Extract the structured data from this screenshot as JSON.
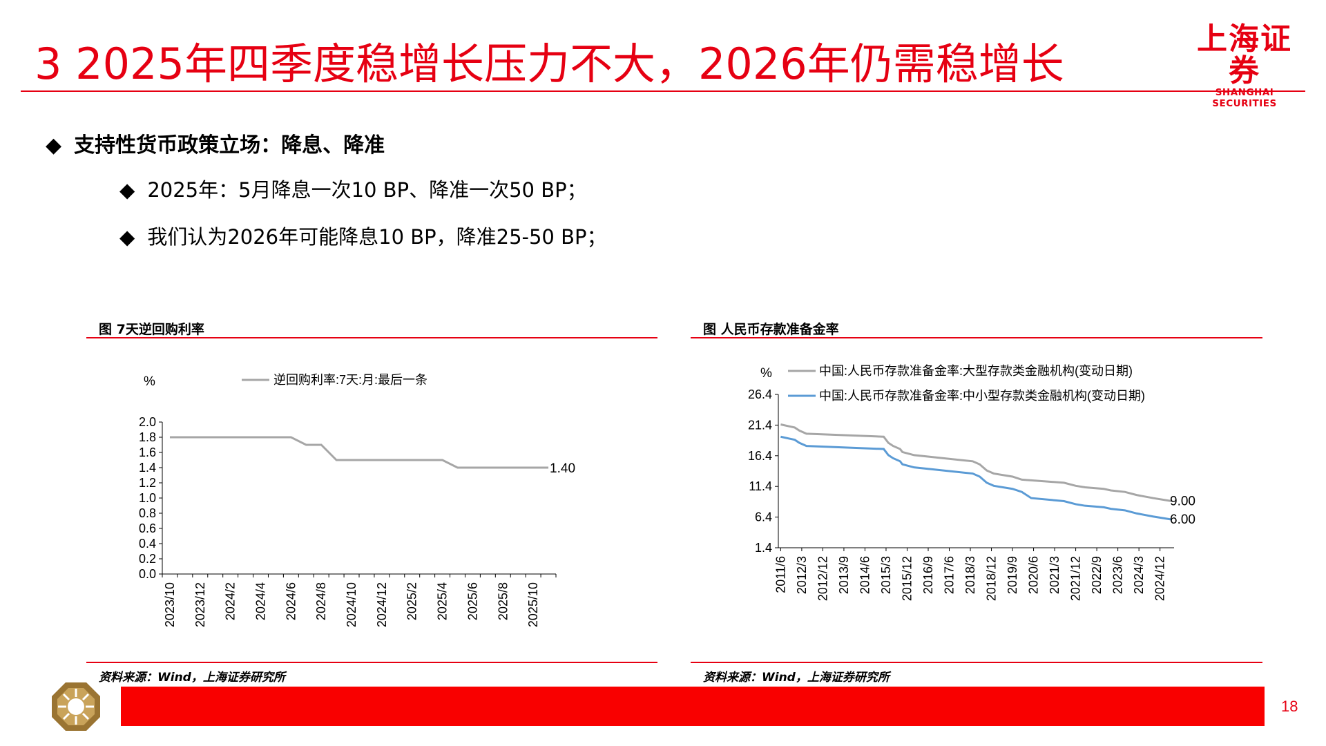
{
  "header": {
    "title": "3 2025年四季度稳增长压力不大，2026年仍需稳增长",
    "logo_cn": "上海证券",
    "logo_en": "SHANGHAI SECURITIES"
  },
  "bullets": {
    "main": "支持性货币政策立场：降息、降准",
    "sub": [
      "2025年：5月降息一次10 BP、降准一次50 BP；",
      "我们认为2026年可能降息10 BP，降准25-50 BP；"
    ],
    "symbol": "◆"
  },
  "chart_left": {
    "heading": "图 7天逆回购利率",
    "source": "资料来源：Wind，上海证券研究所"
  },
  "chart_right": {
    "heading": "图 人民币存款准备金率",
    "source": "资料来源：Wind，上海证券研究所"
  },
  "footer": {
    "page": "18"
  },
  "colors": {
    "brand_red": "#e60012",
    "gray_series": "#a6a6a6",
    "blue_series": "#5b9bd5"
  },
  "chart_data": [
    {
      "type": "line",
      "unit_label": "%",
      "ylim": [
        0.0,
        2.0
      ],
      "yticks": [
        "0.0",
        "0.2",
        "0.4",
        "0.6",
        "0.8",
        "1.0",
        "1.2",
        "1.4",
        "1.6",
        "1.8",
        "2.0"
      ],
      "xticks": [
        "2023/10",
        "2023/12",
        "2024/2",
        "2024/4",
        "2024/6",
        "2024/8",
        "2024/10",
        "2024/12",
        "2025/2",
        "2025/4",
        "2025/6",
        "2025/8",
        "2025/10"
      ],
      "x": [
        "2023/10",
        "2023/11",
        "2023/12",
        "2024/1",
        "2024/2",
        "2024/3",
        "2024/4",
        "2024/5",
        "2024/6",
        "2024/7",
        "2024/8",
        "2024/9",
        "2024/10",
        "2024/11",
        "2024/12",
        "2025/1",
        "2025/2",
        "2025/3",
        "2025/4",
        "2025/5",
        "2025/6",
        "2025/7",
        "2025/8",
        "2025/9",
        "2025/10",
        "2025/11"
      ],
      "series": [
        {
          "name": "逆回购利率:7天:月:最后一条",
          "values": [
            1.8,
            1.8,
            1.8,
            1.8,
            1.8,
            1.8,
            1.8,
            1.8,
            1.8,
            1.7,
            1.7,
            1.5,
            1.5,
            1.5,
            1.5,
            1.5,
            1.5,
            1.5,
            1.5,
            1.4,
            1.4,
            1.4,
            1.4,
            1.4,
            1.4,
            1.4
          ],
          "end_label": "1.40"
        }
      ],
      "grid": false,
      "legend_position": "top"
    },
    {
      "type": "line",
      "unit_label": "%",
      "ylim": [
        1.4,
        26.4
      ],
      "yticks": [
        "1.4",
        "6.4",
        "11.4",
        "16.4",
        "21.4",
        "26.4"
      ],
      "xticks": [
        "2011/6",
        "2012/3",
        "2012/12",
        "2013/9",
        "2014/6",
        "2015/3",
        "2015/12",
        "2016/9",
        "2017/6",
        "2018/3",
        "2018/12",
        "2019/9",
        "2020/6",
        "2021/3",
        "2021/12",
        "2022/9",
        "2023/6",
        "2024/3",
        "2024/12"
      ],
      "series": [
        {
          "name": "中国:人民币存款准备金率:大型存款类金融机构(变动日期)",
          "points": [
            [
              "2011/6",
              21.5
            ],
            [
              "2011/12",
              21.0
            ],
            [
              "2012/2",
              20.5
            ],
            [
              "2012/5",
              20.0
            ],
            [
              "2015/2",
              19.5
            ],
            [
              "2015/4",
              18.5
            ],
            [
              "2015/6",
              18.0
            ],
            [
              "2015/9",
              17.5
            ],
            [
              "2015/10",
              17.0
            ],
            [
              "2016/3",
              16.5
            ],
            [
              "2018/4",
              15.5
            ],
            [
              "2018/7",
              15.0
            ],
            [
              "2018/10",
              14.0
            ],
            [
              "2019/1",
              13.5
            ],
            [
              "2019/9",
              13.0
            ],
            [
              "2020/1",
              12.5
            ],
            [
              "2021/7",
              12.0
            ],
            [
              "2021/12",
              11.5
            ],
            [
              "2022/4",
              11.25
            ],
            [
              "2022/12",
              11.0
            ],
            [
              "2023/3",
              10.75
            ],
            [
              "2023/9",
              10.5
            ],
            [
              "2024/2",
              10.0
            ],
            [
              "2024/9",
              9.5
            ],
            [
              "2025/5",
              9.0
            ]
          ],
          "end_label": "9.00"
        },
        {
          "name": "中国:人民币存款准备金率:中小型存款类金融机构(变动日期)",
          "points": [
            [
              "2011/6",
              19.5
            ],
            [
              "2011/12",
              19.0
            ],
            [
              "2012/2",
              18.5
            ],
            [
              "2012/5",
              18.0
            ],
            [
              "2015/2",
              17.5
            ],
            [
              "2015/4",
              16.5
            ],
            [
              "2015/6",
              16.0
            ],
            [
              "2015/9",
              15.5
            ],
            [
              "2015/10",
              15.0
            ],
            [
              "2016/3",
              14.5
            ],
            [
              "2018/4",
              13.5
            ],
            [
              "2018/7",
              13.0
            ],
            [
              "2018/10",
              12.0
            ],
            [
              "2019/1",
              11.5
            ],
            [
              "2019/9",
              11.0
            ],
            [
              "2020/1",
              10.5
            ],
            [
              "2020/5",
              9.5
            ],
            [
              "2021/7",
              9.0
            ],
            [
              "2021/12",
              8.5
            ],
            [
              "2022/4",
              8.25
            ],
            [
              "2022/12",
              8.0
            ],
            [
              "2023/3",
              7.75
            ],
            [
              "2023/9",
              7.5
            ],
            [
              "2024/2",
              7.0
            ],
            [
              "2024/9",
              6.5
            ],
            [
              "2025/5",
              6.0
            ]
          ],
          "end_label": "6.00"
        }
      ],
      "grid": false,
      "legend_position": "top"
    }
  ]
}
